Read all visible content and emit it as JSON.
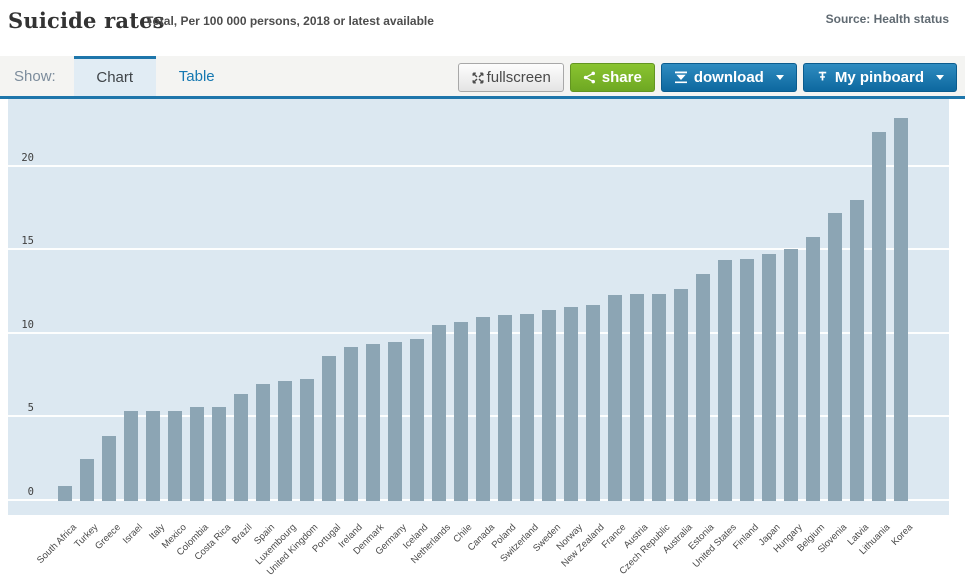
{
  "header": {
    "title": "Suicide rates",
    "subtitle": "Total, Per 100 000 persons, 2018 or latest available",
    "source": "Source: Health status"
  },
  "toolbar": {
    "show_label": "Show:",
    "tabs": [
      {
        "label": "Chart",
        "active": true
      },
      {
        "label": "Table",
        "active": false
      }
    ],
    "fullscreen_label": "fullscreen",
    "share_label": "share",
    "download_label": "download",
    "pinboard_label": "My pinboard"
  },
  "colors": {
    "accent_blue": "#1e76ab",
    "button_blue": "#0d689f",
    "share_green": "#6ea823",
    "toolbar_bg": "#f4f4f2"
  },
  "chart_data": {
    "type": "bar",
    "title": "Suicide rates",
    "subtitle": "Total, Per 100 000 persons, 2018 or latest available",
    "ylabel": "Per 100 000 persons",
    "xlabel": "",
    "ylim": [
      0,
      24
    ],
    "yticks": [
      0,
      5,
      10,
      15,
      20
    ],
    "grid": true,
    "legend": "none",
    "bar_color": "#8ca5b4",
    "plot_bg": "#dce8f1",
    "categories": [
      "South Africa",
      "Turkey",
      "Greece",
      "Israel",
      "Italy",
      "Mexico",
      "Colombia",
      "Costa Rica",
      "Brazil",
      "Spain",
      "Luxembourg",
      "United Kingdom",
      "Portugal",
      "Ireland",
      "Denmark",
      "Germany",
      "Iceland",
      "Netherlands",
      "Chile",
      "Canada",
      "Poland",
      "Switzerland",
      "Sweden",
      "Norway",
      "New Zealand",
      "France",
      "Austria",
      "Czech Republic",
      "Australia",
      "Estonia",
      "United States",
      "Finland",
      "Japan",
      "Hungary",
      "Belgium",
      "Slovenia",
      "Latvia",
      "Lithuania",
      "Korea"
    ],
    "values": [
      0.9,
      2.5,
      3.9,
      5.4,
      5.4,
      5.4,
      5.6,
      5.6,
      6.4,
      7.0,
      7.2,
      7.3,
      8.7,
      9.2,
      9.4,
      9.5,
      9.7,
      10.5,
      10.7,
      11.0,
      11.1,
      11.2,
      11.4,
      11.6,
      11.7,
      12.3,
      12.4,
      12.4,
      12.7,
      13.6,
      14.4,
      14.5,
      14.8,
      15.1,
      15.8,
      17.2,
      18.0,
      22.1,
      22.9
    ]
  }
}
